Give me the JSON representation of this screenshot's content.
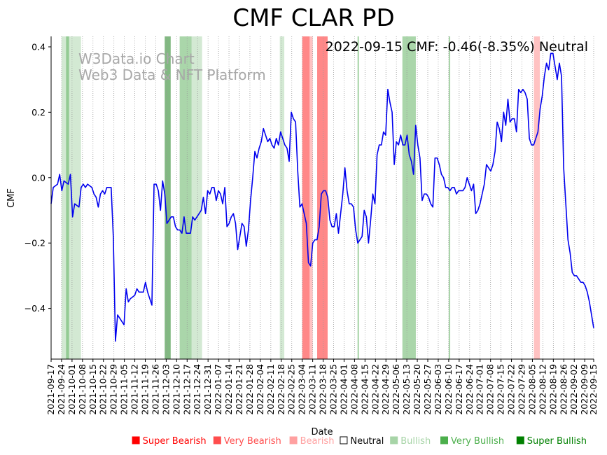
{
  "chart_data": {
    "type": "line",
    "title": "CMF CLAR PD",
    "status_text": "2022-09-15 CMF: -0.46(-8.35%) Neutral",
    "watermark": [
      "W3Data.io Chart",
      "Web3 Data & NFT Platform"
    ],
    "xlabel": "Date",
    "ylabel": "CMF",
    "ylim": [
      -0.555,
      0.432
    ],
    "xlim": [
      "2021-09-17",
      "2022-09-15"
    ],
    "yticks": [
      0.4,
      0.2,
      0.0,
      -0.2,
      -0.4
    ],
    "ytick_labels": [
      "0.4",
      "0.2",
      "0.0",
      "−0.2",
      "−0.4"
    ],
    "xticks": [
      "2021-09-17",
      "2021-09-24",
      "2021-10-01",
      "2021-10-08",
      "2021-10-15",
      "2021-10-22",
      "2021-10-29",
      "2021-11-05",
      "2021-11-12",
      "2021-11-19",
      "2021-11-26",
      "2021-12-03",
      "2021-12-10",
      "2021-12-17",
      "2021-12-24",
      "2021-12-31",
      "2022-01-07",
      "2022-01-14",
      "2022-01-21",
      "2022-01-28",
      "2022-02-04",
      "2022-02-11",
      "2022-02-18",
      "2022-02-25",
      "2022-03-04",
      "2022-03-11",
      "2022-03-18",
      "2022-03-25",
      "2022-04-01",
      "2022-04-08",
      "2022-04-15",
      "2022-04-22",
      "2022-04-29",
      "2022-05-06",
      "2022-05-13",
      "2022-05-20",
      "2022-05-27",
      "2022-06-03",
      "2022-06-10",
      "2022-06-17",
      "2022-06-24",
      "2022-07-01",
      "2022-07-08",
      "2022-07-15",
      "2022-07-22",
      "2022-07-29",
      "2022-08-05",
      "2022-08-12",
      "2022-08-19",
      "2022-08-26",
      "2022-09-02",
      "2022-09-09",
      "2022-09-15"
    ],
    "grid": "vertical-dotted",
    "line_color": "#0000ee",
    "series": [
      {
        "values": [
          [
            0,
            -0.08
          ],
          [
            1,
            -0.03
          ],
          [
            3,
            -0.02
          ],
          [
            4,
            0.01
          ],
          [
            5,
            -0.04
          ],
          [
            6,
            -0.01
          ],
          [
            8,
            -0.02
          ],
          [
            9,
            0.01
          ],
          [
            10,
            -0.12
          ],
          [
            11,
            -0.08
          ],
          [
            13,
            -0.09
          ],
          [
            14,
            -0.03
          ],
          [
            15,
            -0.02
          ],
          [
            16,
            -0.03
          ],
          [
            17,
            -0.02
          ],
          [
            19,
            -0.03
          ],
          [
            20,
            -0.05
          ],
          [
            21,
            -0.06
          ],
          [
            22,
            -0.09
          ],
          [
            23,
            -0.05
          ],
          [
            24,
            -0.04
          ],
          [
            25,
            -0.05
          ],
          [
            26,
            -0.03
          ],
          [
            28,
            -0.03
          ],
          [
            29,
            -0.18
          ],
          [
            30,
            -0.5
          ],
          [
            31,
            -0.42
          ],
          [
            32,
            -0.43
          ],
          [
            33,
            -0.44
          ],
          [
            34,
            -0.45
          ],
          [
            35,
            -0.34
          ],
          [
            36,
            -0.38
          ],
          [
            37,
            -0.37
          ],
          [
            39,
            -0.36
          ],
          [
            40,
            -0.34
          ],
          [
            41,
            -0.35
          ],
          [
            42,
            -0.35
          ],
          [
            43,
            -0.35
          ],
          [
            44,
            -0.32
          ],
          [
            45,
            -0.35
          ],
          [
            46,
            -0.37
          ],
          [
            47,
            -0.39
          ],
          [
            48,
            -0.02
          ],
          [
            49,
            -0.02
          ],
          [
            50,
            -0.04
          ],
          [
            51,
            -0.1
          ],
          [
            52,
            -0.01
          ],
          [
            53,
            -0.05
          ],
          [
            54,
            -0.14
          ],
          [
            55,
            -0.13
          ],
          [
            56,
            -0.12
          ],
          [
            57,
            -0.12
          ],
          [
            58,
            -0.15
          ],
          [
            59,
            -0.16
          ],
          [
            60,
            -0.16
          ],
          [
            61,
            -0.17
          ],
          [
            62,
            -0.12
          ],
          [
            63,
            -0.17
          ],
          [
            65,
            -0.17
          ],
          [
            66,
            -0.12
          ],
          [
            67,
            -0.13
          ],
          [
            68,
            -0.12
          ],
          [
            69,
            -0.11
          ],
          [
            70,
            -0.1
          ],
          [
            71,
            -0.06
          ],
          [
            72,
            -0.11
          ],
          [
            73,
            -0.04
          ],
          [
            74,
            -0.05
          ],
          [
            75,
            -0.03
          ],
          [
            76,
            -0.03
          ],
          [
            77,
            -0.07
          ],
          [
            78,
            -0.04
          ],
          [
            79,
            -0.05
          ],
          [
            80,
            -0.08
          ],
          [
            81,
            -0.03
          ],
          [
            82,
            -0.15
          ],
          [
            83,
            -0.14
          ],
          [
            84,
            -0.12
          ],
          [
            85,
            -0.11
          ],
          [
            86,
            -0.14
          ],
          [
            87,
            -0.22
          ],
          [
            88,
            -0.18
          ],
          [
            89,
            -0.14
          ],
          [
            90,
            -0.15
          ],
          [
            91,
            -0.21
          ],
          [
            92,
            -0.16
          ],
          [
            93,
            -0.07
          ],
          [
            94,
            0.0
          ],
          [
            95,
            0.08
          ],
          [
            96,
            0.06
          ],
          [
            97,
            0.09
          ],
          [
            98,
            0.11
          ],
          [
            99,
            0.15
          ],
          [
            100,
            0.13
          ],
          [
            101,
            0.11
          ],
          [
            102,
            0.12
          ],
          [
            103,
            0.1
          ],
          [
            104,
            0.09
          ],
          [
            105,
            0.12
          ],
          [
            106,
            0.1
          ],
          [
            107,
            0.14
          ],
          [
            108,
            0.12
          ],
          [
            109,
            0.1
          ],
          [
            110,
            0.09
          ],
          [
            111,
            0.05
          ],
          [
            112,
            0.2
          ],
          [
            113,
            0.18
          ],
          [
            114,
            0.17
          ],
          [
            115,
            0.02
          ],
          [
            116,
            -0.09
          ],
          [
            117,
            -0.08
          ],
          [
            118,
            -0.11
          ],
          [
            119,
            -0.14
          ],
          [
            120,
            -0.26
          ],
          [
            121,
            -0.27
          ],
          [
            122,
            -0.2
          ],
          [
            123,
            -0.19
          ],
          [
            124,
            -0.19
          ],
          [
            125,
            -0.15
          ],
          [
            126,
            -0.05
          ],
          [
            127,
            -0.04
          ],
          [
            128,
            -0.04
          ],
          [
            129,
            -0.06
          ],
          [
            130,
            -0.13
          ],
          [
            131,
            -0.15
          ],
          [
            132,
            -0.15
          ],
          [
            133,
            -0.11
          ],
          [
            134,
            -0.17
          ],
          [
            135,
            -0.11
          ],
          [
            136,
            -0.05
          ],
          [
            137,
            0.03
          ],
          [
            138,
            -0.04
          ],
          [
            139,
            -0.08
          ],
          [
            140,
            -0.08
          ],
          [
            141,
            -0.09
          ],
          [
            142,
            -0.16
          ],
          [
            143,
            -0.2
          ],
          [
            144,
            -0.19
          ],
          [
            145,
            -0.18
          ],
          [
            146,
            -0.1
          ],
          [
            147,
            -0.12
          ],
          [
            148,
            -0.2
          ],
          [
            149,
            -0.13
          ],
          [
            150,
            -0.05
          ],
          [
            151,
            -0.08
          ],
          [
            152,
            0.07
          ],
          [
            153,
            0.1
          ],
          [
            154,
            0.1
          ],
          [
            155,
            0.14
          ],
          [
            156,
            0.13
          ],
          [
            157,
            0.27
          ],
          [
            158,
            0.23
          ],
          [
            159,
            0.2
          ],
          [
            160,
            0.04
          ],
          [
            161,
            0.11
          ],
          [
            162,
            0.1
          ],
          [
            163,
            0.13
          ],
          [
            164,
            0.1
          ],
          [
            165,
            0.1
          ],
          [
            166,
            0.13
          ],
          [
            167,
            0.07
          ],
          [
            168,
            0.05
          ],
          [
            169,
            0.01
          ],
          [
            170,
            0.16
          ],
          [
            171,
            0.1
          ],
          [
            172,
            0.06
          ],
          [
            173,
            -0.07
          ],
          [
            174,
            -0.05
          ],
          [
            175,
            -0.05
          ],
          [
            176,
            -0.06
          ],
          [
            177,
            -0.08
          ],
          [
            178,
            -0.09
          ],
          [
            179,
            0.06
          ],
          [
            180,
            0.06
          ],
          [
            181,
            0.04
          ],
          [
            182,
            0.01
          ],
          [
            183,
            0.0
          ],
          [
            184,
            -0.03
          ],
          [
            185,
            -0.03
          ],
          [
            186,
            -0.04
          ],
          [
            187,
            -0.03
          ],
          [
            188,
            -0.03
          ],
          [
            189,
            -0.05
          ],
          [
            190,
            -0.04
          ],
          [
            191,
            -0.04
          ],
          [
            192,
            -0.04
          ],
          [
            193,
            -0.03
          ],
          [
            194,
            0.0
          ],
          [
            195,
            -0.02
          ],
          [
            196,
            -0.04
          ],
          [
            197,
            -0.02
          ],
          [
            198,
            -0.11
          ],
          [
            199,
            -0.1
          ],
          [
            200,
            -0.08
          ],
          [
            201,
            -0.05
          ],
          [
            202,
            -0.02
          ],
          [
            203,
            0.04
          ],
          [
            204,
            0.03
          ],
          [
            205,
            0.02
          ],
          [
            206,
            0.04
          ],
          [
            207,
            0.08
          ],
          [
            208,
            0.17
          ],
          [
            209,
            0.15
          ],
          [
            210,
            0.11
          ],
          [
            211,
            0.2
          ],
          [
            212,
            0.16
          ],
          [
            213,
            0.24
          ],
          [
            214,
            0.17
          ],
          [
            215,
            0.18
          ],
          [
            216,
            0.18
          ],
          [
            217,
            0.14
          ],
          [
            218,
            0.27
          ],
          [
            219,
            0.26
          ],
          [
            220,
            0.27
          ],
          [
            221,
            0.26
          ],
          [
            222,
            0.24
          ],
          [
            223,
            0.12
          ],
          [
            224,
            0.1
          ],
          [
            225,
            0.1
          ],
          [
            226,
            0.12
          ],
          [
            227,
            0.14
          ],
          [
            228,
            0.21
          ],
          [
            229,
            0.25
          ],
          [
            230,
            0.31
          ],
          [
            231,
            0.35
          ],
          [
            232,
            0.33
          ],
          [
            233,
            0.38
          ],
          [
            234,
            0.38
          ],
          [
            235,
            0.34
          ],
          [
            236,
            0.3
          ],
          [
            237,
            0.35
          ],
          [
            238,
            0.31
          ],
          [
            239,
            0.03
          ],
          [
            240,
            -0.08
          ],
          [
            241,
            -0.19
          ],
          [
            242,
            -0.23
          ],
          [
            243,
            -0.29
          ],
          [
            244,
            -0.3
          ],
          [
            245,
            -0.3
          ],
          [
            246,
            -0.31
          ],
          [
            247,
            -0.32
          ],
          [
            248,
            -0.32
          ],
          [
            249,
            -0.33
          ],
          [
            250,
            -0.35
          ],
          [
            251,
            -0.38
          ],
          [
            252,
            -0.42
          ],
          [
            253,
            -0.46
          ]
        ]
      }
    ],
    "x_days_total": 363,
    "bands": [
      {
        "start": 7,
        "end": 13,
        "level": "bullish"
      },
      {
        "start": 10,
        "end": 12,
        "level": "very_bullish"
      },
      {
        "start": 13,
        "end": 20,
        "level": "bullish"
      },
      {
        "start": 76,
        "end": 80,
        "level": "super_bullish"
      },
      {
        "start": 86,
        "end": 94,
        "level": "very_bullish"
      },
      {
        "start": 94,
        "end": 101,
        "level": "bullish"
      },
      {
        "start": 153,
        "end": 156,
        "level": "bullish"
      },
      {
        "start": 168,
        "end": 173,
        "level": "very_bearish"
      },
      {
        "start": 173,
        "end": 175,
        "level": "bearish"
      },
      {
        "start": 178,
        "end": 185,
        "level": "very_bearish"
      },
      {
        "start": 205,
        "end": 206,
        "level": "very_bullish"
      },
      {
        "start": 235,
        "end": 244,
        "level": "very_bullish"
      },
      {
        "start": 266,
        "end": 267,
        "level": "very_bullish"
      },
      {
        "start": 323,
        "end": 327,
        "level": "bearish"
      }
    ],
    "band_colors": {
      "super_bearish": "#ff0000",
      "very_bearish": "#ff7373",
      "bearish": "#ffb3b3",
      "bullish": "#a7d4a7",
      "very_bullish": "#56ad56",
      "super_bullish": "#2e8b2e"
    },
    "band_opacity": {
      "super_bearish": 0.9,
      "very_bearish": 0.85,
      "bearish": 0.8,
      "bullish": 0.5,
      "very_bullish": 0.5,
      "super_bullish": 0.6
    },
    "legend": {
      "placement": "bottom",
      "items": [
        {
          "label": "Super Bearish",
          "color": "#ff0000"
        },
        {
          "label": "Very Bearish",
          "color": "#ff4d4d"
        },
        {
          "label": "Bearish",
          "color": "#ffa0a0"
        },
        {
          "label": "Neutral",
          "color": "#000000",
          "hollow": true
        },
        {
          "label": "Bullish",
          "color": "#a7d4a7"
        },
        {
          "label": "Very Bullish",
          "color": "#4caf4c"
        },
        {
          "label": "Super Bullish",
          "color": "#008000"
        }
      ]
    }
  }
}
